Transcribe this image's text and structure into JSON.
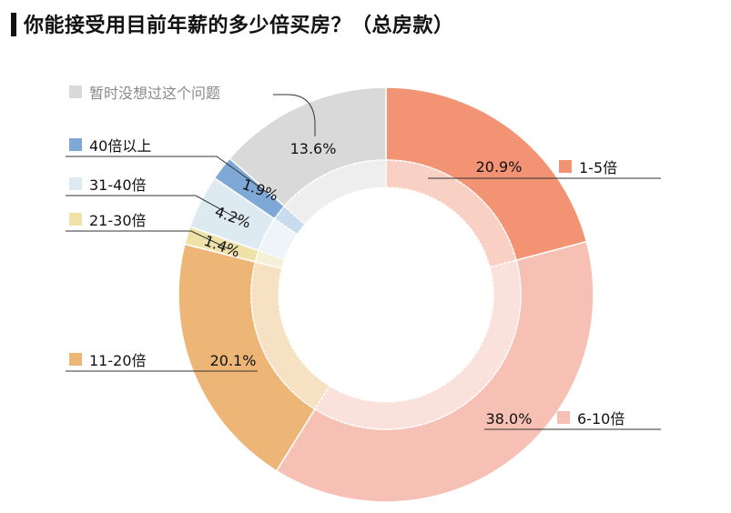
{
  "title": "你能接受用目前年薪的多少倍买房？（总房款）",
  "chart_data": {
    "type": "pie",
    "title": "你能接受用目前年薪的多少倍买房？（总房款）",
    "categories": [
      "1-5倍",
      "6-10倍",
      "11-20倍",
      "21-30倍",
      "31-40倍",
      "40倍以上",
      "暂时没想过这个问题"
    ],
    "values": [
      20.9,
      38.0,
      20.1,
      1.4,
      4.2,
      1.9,
      13.6
    ],
    "value_labels": [
      "20.9%",
      "38.0%",
      "20.1%",
      "1.4%",
      "4.2%",
      "1.9%",
      "13.6%"
    ],
    "colors": {
      "outer": [
        "#F29374",
        "#F7C0B4",
        "#EDB677",
        "#EEE2A8",
        "#DDEAF2",
        "#7EA9D7",
        "#D9D9D9"
      ],
      "inner": [
        "#F8D0C4",
        "#FBE1DC",
        "#F7E1C3",
        "#F5F0D8",
        "#EEF4F8",
        "#C9DCEF",
        "#EEEEEE"
      ]
    },
    "legend": [
      "1-5倍",
      "6-10倍",
      "11-20倍",
      "21-30倍",
      "31-40倍",
      "40倍以上",
      "暂时没想过这个问题"
    ],
    "donut": true
  }
}
